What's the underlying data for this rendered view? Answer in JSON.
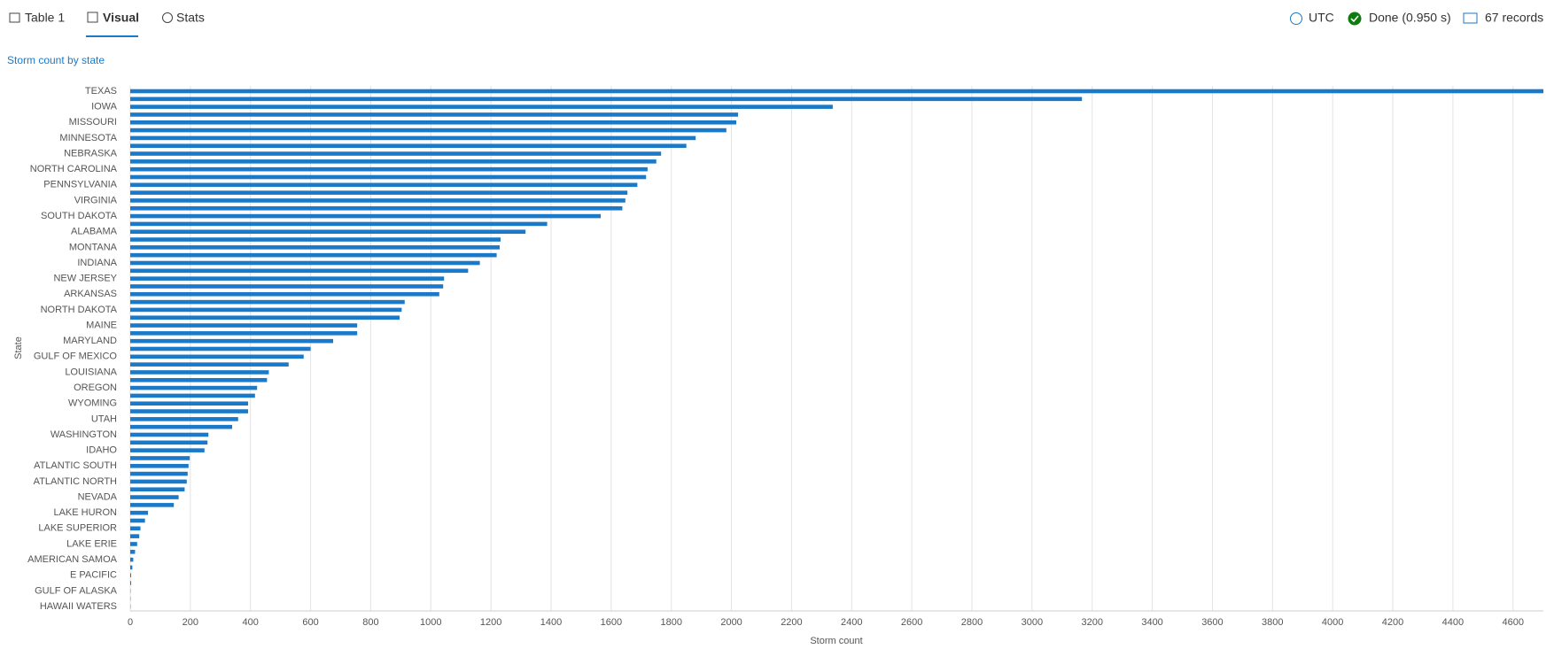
{
  "toolbar": {
    "tabs": [
      "Table 1",
      "Visual",
      "Stats"
    ],
    "timezone": "UTC",
    "status": "Done (0.950 s)",
    "records": "67 records"
  },
  "chart_data": {
    "type": "bar",
    "orientation": "horizontal",
    "title": "Storm count by state",
    "x_label": "Storm count",
    "y_label": "State",
    "color": "#1a7ac9",
    "grid": true,
    "categories": [
      "TEXAS",
      null,
      "IOWA",
      null,
      "MISSOURI",
      null,
      "MINNESOTA",
      null,
      "NEBRASKA",
      null,
      "NORTH CAROLINA",
      null,
      "PENNSYLVANIA",
      null,
      "VIRGINIA",
      null,
      "SOUTH DAKOTA",
      null,
      "ALABAMA",
      null,
      "MONTANA",
      null,
      "INDIANA",
      null,
      "NEW JERSEY",
      null,
      "ARKANSAS",
      null,
      "NORTH DAKOTA",
      null,
      "MAINE",
      null,
      "MARYLAND",
      null,
      "GULF OF MEXICO",
      null,
      "LOUISIANA",
      null,
      "OREGON",
      null,
      "WYOMING",
      null,
      "UTAH",
      null,
      "WASHINGTON",
      null,
      "IDAHO",
      null,
      "ATLANTIC SOUTH",
      null,
      "ATLANTIC NORTH",
      null,
      "NEVADA",
      null,
      "LAKE HURON",
      null,
      "LAKE SUPERIOR",
      null,
      "LAKE ERIE",
      null,
      "AMERICAN SAMOA",
      null,
      "E PACIFIC",
      null,
      "GULF OF ALASKA",
      null,
      "HAWAII WATERS"
    ],
    "values": [
      4701,
      3166,
      2337,
      2022,
      2016,
      1983,
      1881,
      1850,
      1766,
      1750,
      1721,
      1716,
      1687,
      1654,
      1647,
      1637,
      1565,
      1387,
      1315,
      1232,
      1229,
      1219,
      1163,
      1124,
      1044,
      1041,
      1028,
      913,
      903,
      896,
      755,
      755,
      675,
      600,
      577,
      527,
      461,
      455,
      422,
      415,
      392,
      392,
      359,
      339,
      260,
      257,
      247,
      198,
      194,
      191,
      188,
      181,
      161,
      145,
      59,
      49,
      34,
      30,
      23,
      16,
      10,
      7,
      3,
      3,
      1,
      1,
      1
    ],
    "xlim": [
      0,
      4701
    ],
    "xticks": [
      0,
      200,
      400,
      600,
      800,
      1000,
      1200,
      1400,
      1600,
      1800,
      2000,
      2200,
      2400,
      2600,
      2800,
      3000,
      3200,
      3400,
      3600,
      3800,
      4000,
      4200,
      4400,
      4600
    ]
  }
}
